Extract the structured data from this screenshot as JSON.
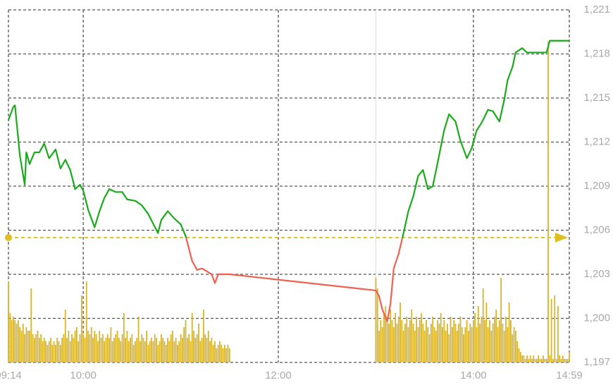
{
  "chart_data": {
    "type": "line",
    "xlim": [
      554,
      899
    ],
    "ylim": [
      1197,
      1221
    ],
    "xticks": [
      {
        "value": 554,
        "label": "09:14"
      },
      {
        "value": 600,
        "label": "10:00"
      },
      {
        "value": 720,
        "label": "12:00"
      },
      {
        "value": 840,
        "label": "14:00"
      },
      {
        "value": 899,
        "label": "14:59"
      }
    ],
    "yticks": [
      {
        "value": 1197,
        "label": "1,197"
      },
      {
        "value": 1200,
        "label": "1,200"
      },
      {
        "value": 1203,
        "label": "1,203"
      },
      {
        "value": 1206,
        "label": "1,206"
      },
      {
        "value": 1209,
        "label": "1,209"
      },
      {
        "value": 1212,
        "label": "1,212"
      },
      {
        "value": 1215,
        "label": "1,215"
      },
      {
        "value": 1218,
        "label": "1,218"
      },
      {
        "value": 1221,
        "label": "1,221"
      }
    ],
    "grid": true,
    "session_break": 780,
    "reference": {
      "value": 1205.5,
      "color": "#e0c020"
    },
    "series": [
      {
        "color": "#1aaa1a",
        "color_below": "#f06050",
        "x": [
          554,
          557,
          558,
          561,
          564,
          565,
          567,
          570,
          573,
          576,
          579,
          583,
          586,
          589,
          592,
          595,
          598,
          600,
          603,
          607,
          610,
          613,
          616,
          620,
          624,
          627,
          632,
          636,
          640,
          646,
          648,
          652,
          656,
          660,
          663,
          667,
          670,
          673,
          676,
          679,
          681,
          683,
          686,
          690,
          780,
          782,
          784,
          787,
          789,
          791,
          794,
          797,
          800,
          803,
          806,
          809,
          812,
          815,
          818,
          822,
          825,
          829,
          832,
          836,
          839,
          842,
          845,
          849,
          852,
          856,
          859,
          861,
          864,
          866,
          870,
          873,
          878,
          885,
          887,
          893,
          899
        ],
        "values": [
          1213.5,
          1214.4,
          1214.5,
          1211.1,
          1209.1,
          1211.3,
          1210.5,
          1211.3,
          1211.3,
          1211.9,
          1210.9,
          1211.5,
          1210.2,
          1210.8,
          1210.1,
          1208.8,
          1209.1,
          1208.7,
          1207.4,
          1206.2,
          1207.3,
          1208.2,
          1208.8,
          1208.6,
          1208.6,
          1208.1,
          1208.0,
          1207.7,
          1207.1,
          1205.8,
          1206.7,
          1207.3,
          1206.8,
          1206.4,
          1205.6,
          1203.9,
          1203.3,
          1203.4,
          1203.2,
          1203.0,
          1202.4,
          1203.0,
          1203.0,
          1203.0,
          1201.9,
          1201.5,
          1200.6,
          1199.8,
          1201.0,
          1203.4,
          1204.4,
          1205.8,
          1207.3,
          1208.3,
          1209.7,
          1210.1,
          1208.8,
          1209.0,
          1210.6,
          1212.8,
          1213.9,
          1213.4,
          1212.1,
          1210.9,
          1211.6,
          1212.8,
          1213.3,
          1214.2,
          1214.1,
          1213.4,
          1214.9,
          1216.2,
          1217.1,
          1218.1,
          1218.4,
          1218.1,
          1218.1,
          1218.1,
          1218.9,
          1218.9,
          1218.9
        ]
      }
    ],
    "volume": {
      "axis": "y2",
      "color": "#d8b42a",
      "x": [
        554,
        555,
        556,
        557,
        558,
        559,
        560,
        561,
        562,
        563,
        564,
        565,
        566,
        567,
        568,
        569,
        570,
        571,
        572,
        573,
        574,
        575,
        576,
        577,
        578,
        579,
        580,
        581,
        582,
        583,
        584,
        585,
        586,
        587,
        588,
        589,
        590,
        591,
        592,
        593,
        594,
        595,
        596,
        597,
        598,
        599,
        600,
        601,
        602,
        603,
        604,
        605,
        606,
        607,
        608,
        609,
        610,
        611,
        612,
        613,
        614,
        615,
        616,
        617,
        618,
        619,
        620,
        621,
        622,
        623,
        624,
        625,
        626,
        627,
        628,
        629,
        630,
        631,
        632,
        633,
        634,
        635,
        636,
        637,
        638,
        639,
        640,
        641,
        642,
        643,
        644,
        645,
        646,
        647,
        648,
        649,
        650,
        651,
        652,
        653,
        654,
        655,
        656,
        657,
        658,
        659,
        660,
        661,
        662,
        663,
        664,
        665,
        666,
        667,
        668,
        669,
        670,
        671,
        672,
        673,
        674,
        675,
        676,
        677,
        678,
        679,
        680,
        681,
        682,
        683,
        684,
        685,
        686,
        687,
        688,
        689,
        690,
        780,
        781,
        782,
        783,
        784,
        785,
        786,
        787,
        788,
        789,
        790,
        791,
        792,
        793,
        794,
        795,
        796,
        797,
        798,
        799,
        800,
        801,
        802,
        803,
        804,
        805,
        806,
        807,
        808,
        809,
        810,
        811,
        812,
        813,
        814,
        815,
        816,
        817,
        818,
        819,
        820,
        821,
        822,
        823,
        824,
        825,
        826,
        827,
        828,
        829,
        830,
        831,
        832,
        833,
        834,
        835,
        836,
        837,
        838,
        839,
        840,
        841,
        842,
        843,
        844,
        845,
        846,
        847,
        848,
        849,
        850,
        851,
        852,
        853,
        854,
        855,
        856,
        857,
        858,
        859,
        860,
        861,
        862,
        863,
        864,
        865,
        866,
        867,
        868,
        869,
        870,
        871,
        872,
        873,
        874,
        875,
        876,
        877,
        878,
        879,
        880,
        881,
        882,
        883,
        884,
        885,
        886,
        887,
        888,
        889,
        890,
        891,
        892,
        893,
        894,
        895,
        896,
        897,
        898,
        899
      ],
      "values": [
        23,
        14,
        12,
        13,
        12,
        11,
        12,
        10,
        9,
        11,
        8,
        10,
        9,
        9,
        21,
        8,
        7,
        8,
        9,
        7,
        8,
        6,
        7,
        6,
        5,
        6,
        7,
        5,
        6,
        5,
        7,
        6,
        5,
        7,
        8,
        15,
        7,
        9,
        6,
        8,
        7,
        9,
        10,
        6,
        8,
        19,
        8,
        7,
        23,
        9,
        8,
        10,
        7,
        9,
        8,
        6,
        9,
        7,
        8,
        6,
        7,
        8,
        7,
        10,
        6,
        7,
        8,
        9,
        7,
        6,
        8,
        14,
        7,
        9,
        6,
        7,
        8,
        5,
        6,
        7,
        13,
        6,
        8,
        7,
        6,
        9,
        5,
        6,
        7,
        6,
        8,
        7,
        5,
        6,
        8,
        7,
        6,
        5,
        7,
        6,
        8,
        9,
        6,
        7,
        5,
        6,
        8,
        7,
        10,
        12,
        7,
        8,
        6,
        14,
        9,
        7,
        8,
        11,
        6,
        7,
        15,
        8,
        7,
        9,
        6,
        7,
        5,
        6,
        4,
        5,
        6,
        5,
        4,
        5,
        4,
        5,
        4,
        24,
        21,
        9,
        12,
        10,
        14,
        16,
        13,
        11,
        15,
        12,
        10,
        14,
        11,
        13,
        17,
        12,
        9,
        11,
        13,
        10,
        12,
        15,
        11,
        9,
        13,
        10,
        12,
        14,
        11,
        9,
        12,
        10,
        8,
        11,
        13,
        10,
        9,
        12,
        11,
        14,
        10,
        12,
        9,
        11,
        8,
        13,
        10,
        12,
        11,
        9,
        11,
        13,
        10,
        8,
        10,
        12,
        9,
        11,
        10,
        12,
        14,
        10,
        16,
        11,
        13,
        21,
        12,
        17,
        10,
        12,
        9,
        11,
        13,
        15,
        10,
        12,
        24,
        11,
        9,
        13,
        10,
        17,
        12,
        8,
        10,
        9,
        6,
        4,
        3,
        2,
        2,
        1,
        2,
        1,
        2,
        1,
        2,
        1,
        1,
        2,
        1,
        1,
        2,
        1,
        1,
        91,
        2,
        18,
        1,
        19,
        1,
        16,
        2,
        1,
        2,
        1,
        1,
        1,
        3
      ]
    },
    "y2lim": [
      0,
      100
    ]
  }
}
